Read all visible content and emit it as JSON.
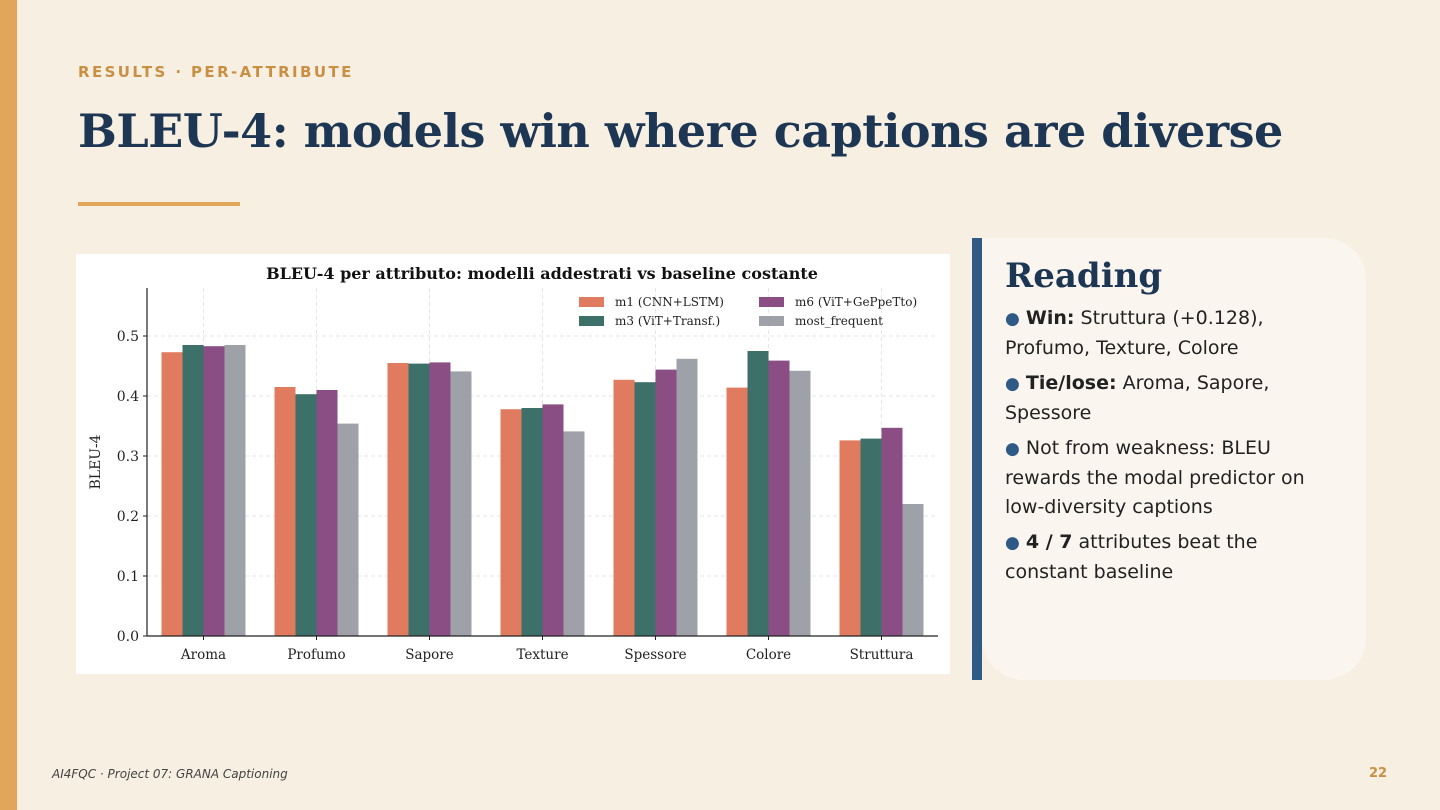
{
  "slide": {
    "kicker": "RESULTS · PER-ATTRIBUTE",
    "title": "BLEU-4: models win where captions are diverse",
    "footer": "AI4FQC · Project 07: GRANA Captioning",
    "page_number": "22",
    "colors": {
      "accent": "#e2a65a",
      "title": "#1d3654",
      "reading_accent": "#2f5a85",
      "background": "#f6efe2"
    }
  },
  "reading": {
    "title": "Reading",
    "bullets": [
      {
        "bold": "Win:",
        "text": " Struttura (+0.128), Profumo, Texture, Colore"
      },
      {
        "bold": "Tie/lose:",
        "text": " Aroma, Sapore, Spessore"
      },
      {
        "bold": "",
        "text": "Not from weakness: BLEU rewards the modal predictor on low-diversity captions"
      },
      {
        "bold": "4 / 7",
        "text": " attributes beat the constant baseline"
      }
    ]
  },
  "chart_data": {
    "type": "bar",
    "title": "BLEU-4 per attributo: modelli addestrati vs baseline costante",
    "xlabel": "",
    "ylabel": "BLEU-4",
    "ylim": [
      0,
      0.58
    ],
    "yticks": [
      "0.0",
      "0.1",
      "0.2",
      "0.3",
      "0.4",
      "0.5"
    ],
    "grid": true,
    "legend_position": "top-right",
    "categories": [
      "Aroma",
      "Profumo",
      "Sapore",
      "Texture",
      "Spessore",
      "Colore",
      "Struttura"
    ],
    "series": [
      {
        "name": "m1 (CNN+LSTM)",
        "color": "#e07b5f",
        "values": [
          0.473,
          0.415,
          0.455,
          0.378,
          0.427,
          0.414,
          0.326
        ]
      },
      {
        "name": "m3 (ViT+Transf.)",
        "color": "#3d7069",
        "values": [
          0.485,
          0.403,
          0.454,
          0.38,
          0.423,
          0.475,
          0.329
        ]
      },
      {
        "name": "m6 (ViT+GePpeTto)",
        "color": "#8a4e84",
        "values": [
          0.483,
          0.41,
          0.456,
          0.386,
          0.444,
          0.459,
          0.347
        ]
      },
      {
        "name": "most_frequent",
        "color": "#9ea1a7",
        "values": [
          0.485,
          0.354,
          0.441,
          0.341,
          0.462,
          0.442,
          0.22
        ]
      }
    ]
  }
}
